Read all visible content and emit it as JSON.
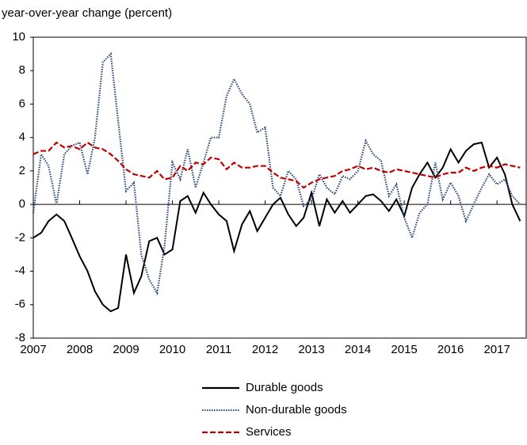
{
  "chart_data": {
    "type": "line",
    "y_axis_label": "year-over-year change (percent)",
    "x": [
      2007,
      2007.17,
      2007.33,
      2007.5,
      2007.67,
      2007.83,
      2008,
      2008.17,
      2008.33,
      2008.5,
      2008.67,
      2008.83,
      2009,
      2009.17,
      2009.33,
      2009.5,
      2009.67,
      2009.83,
      2010,
      2010.17,
      2010.33,
      2010.5,
      2010.67,
      2010.83,
      2011,
      2011.17,
      2011.33,
      2011.5,
      2011.67,
      2011.83,
      2012,
      2012.17,
      2012.33,
      2012.5,
      2012.67,
      2012.83,
      2013,
      2013.17,
      2013.33,
      2013.5,
      2013.67,
      2013.83,
      2014,
      2014.17,
      2014.33,
      2014.5,
      2014.67,
      2014.83,
      2015,
      2015.17,
      2015.33,
      2015.5,
      2015.67,
      2015.83,
      2016,
      2016.17,
      2016.33,
      2016.5,
      2016.67,
      2016.83,
      2017,
      2017.17,
      2017.33,
      2017.5
    ],
    "series": [
      {
        "name": "Durable goods",
        "color": "#000000",
        "style": "solid",
        "values": [
          -2.0,
          -1.7,
          -1.0,
          -0.6,
          -1.0,
          -2.0,
          -3.1,
          -4.0,
          -5.2,
          -6.0,
          -6.4,
          -6.2,
          -3.0,
          -5.3,
          -4.3,
          -2.2,
          -2.0,
          -3.0,
          -2.7,
          0.2,
          0.5,
          -0.5,
          0.7,
          0.0,
          -0.6,
          -1.0,
          -2.8,
          -1.2,
          -0.4,
          -1.6,
          -0.8,
          0.0,
          0.4,
          -0.6,
          -1.3,
          -0.8,
          0.7,
          -1.3,
          0.3,
          -0.5,
          0.2,
          -0.5,
          0.0,
          0.5,
          0.6,
          0.2,
          -0.4,
          0.3,
          -0.7,
          1.0,
          1.8,
          2.5,
          1.6,
          2.2,
          3.3,
          2.5,
          3.2,
          3.6,
          3.7,
          2.2,
          2.8,
          1.8,
          0.0,
          -1.0
        ]
      },
      {
        "name": "Non-durable goods",
        "color": "#2e4a78",
        "style": "dotted",
        "values": [
          -0.5,
          3.0,
          2.3,
          0.0,
          3.0,
          3.5,
          3.7,
          1.8,
          4.0,
          8.5,
          9.0,
          5.0,
          0.8,
          1.3,
          -3.0,
          -4.5,
          -5.3,
          -2.5,
          2.5,
          1.5,
          3.3,
          1.0,
          2.5,
          4.0,
          4.0,
          6.5,
          7.5,
          6.6,
          6.0,
          4.3,
          4.6,
          1.0,
          0.5,
          2.0,
          1.5,
          -0.1,
          0.3,
          1.8,
          1.0,
          0.6,
          1.7,
          1.5,
          2.0,
          3.8,
          3.0,
          2.6,
          0.5,
          1.2,
          -0.8,
          -2.0,
          -0.5,
          0.0,
          2.5,
          0.3,
          1.3,
          0.5,
          -1.0,
          0.0,
          1.0,
          1.8,
          1.2,
          1.5,
          0.5,
          0.0
        ]
      },
      {
        "name": "Services",
        "color": "#c00000",
        "style": "dashed",
        "values": [
          3.0,
          3.2,
          3.2,
          3.7,
          3.4,
          3.5,
          3.3,
          3.7,
          3.4,
          3.3,
          3.0,
          2.6,
          2.1,
          1.8,
          1.7,
          1.6,
          2.0,
          1.5,
          1.6,
          2.3,
          2.0,
          2.5,
          2.4,
          2.8,
          2.7,
          2.1,
          2.5,
          2.2,
          2.2,
          2.3,
          2.3,
          1.9,
          1.6,
          1.5,
          1.4,
          1.0,
          1.3,
          1.5,
          1.6,
          1.7,
          2.0,
          2.1,
          2.3,
          2.1,
          2.2,
          2.0,
          1.9,
          2.1,
          2.0,
          1.9,
          1.8,
          1.7,
          1.6,
          1.8,
          1.9,
          1.9,
          2.2,
          2.0,
          2.2,
          2.3,
          2.2,
          2.4,
          2.3,
          2.2
        ]
      }
    ],
    "xlim": [
      2007,
      2017.63
    ],
    "xticks": [
      2007,
      2008,
      2009,
      2010,
      2011,
      2012,
      2013,
      2014,
      2015,
      2016,
      2017
    ],
    "ylim": [
      -8,
      10
    ],
    "yticks": [
      -8,
      -6,
      -4,
      -2,
      0,
      2,
      4,
      6,
      8,
      10
    ],
    "legend": "bottom"
  }
}
